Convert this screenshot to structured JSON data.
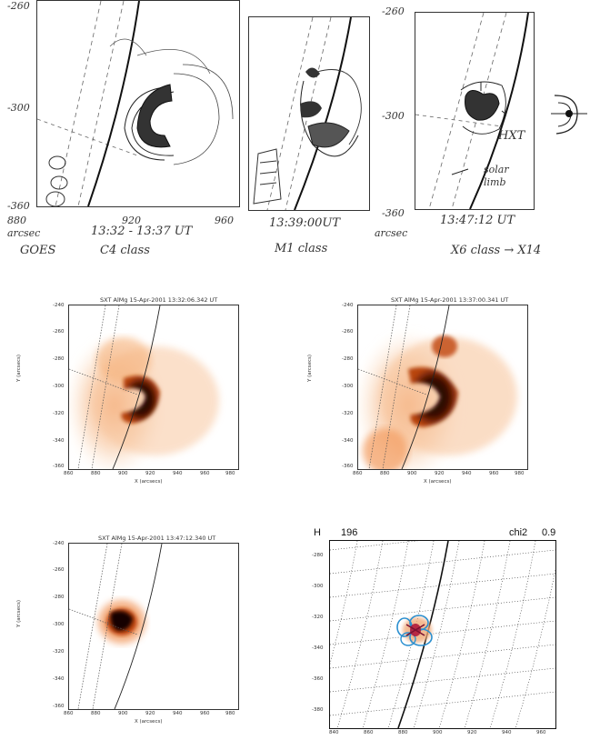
{
  "sketches": [
    {
      "ticks_y": [
        "-260",
        "-300",
        "-360"
      ],
      "ticks_x": [
        "880",
        "920",
        "960"
      ],
      "unit": "arcsec",
      "time": "13:32 - 13:37 UT",
      "goes_label": "GOES",
      "flare_class": "C4 class"
    },
    {
      "time": "13:39:00UT",
      "flare_class": "M1 class"
    },
    {
      "ticks_y": [
        "-260",
        "-300",
        "-360"
      ],
      "unit": "arcsec",
      "time": "13:47:12 UT",
      "flare_class": "X6 class → X14",
      "hxt_label": "HXT",
      "limb_label": "solar limb"
    }
  ],
  "sxt_panels": [
    {
      "title": "SXT AlMg 15-Apr-2001 13:32:06.342 UT",
      "ylabel": "Y (arcsecs)",
      "xlabel": "X (arcsecs)",
      "yticks": [
        "-240",
        "-260",
        "-280",
        "-300",
        "-320",
        "-340",
        "-360"
      ],
      "xticks": [
        "860",
        "880",
        "900",
        "920",
        "940",
        "960",
        "980"
      ]
    },
    {
      "title": "SXT AlMg 15-Apr-2001 13:37:00.341 UT",
      "ylabel": "Y (arcsecs)",
      "xlabel": "X (arcsecs)",
      "yticks": [
        "-240",
        "-260",
        "-280",
        "-300",
        "-320",
        "-340",
        "-360"
      ],
      "xticks": [
        "860",
        "880",
        "900",
        "920",
        "940",
        "960",
        "980"
      ]
    },
    {
      "title": "SXT AlMg 15-Apr-2001 13:47:12.340 UT",
      "ylabel": "Y (arcsecs)",
      "xlabel": "X (arcsecs)",
      "yticks": [
        "-240",
        "-260",
        "-280",
        "-300",
        "-320",
        "-340",
        "-360"
      ],
      "xticks": [
        "860",
        "880",
        "900",
        "920",
        "940",
        "960",
        "980"
      ]
    }
  ],
  "model_panel": {
    "label_left": "H",
    "label_num": "196",
    "label_chi": "chi2",
    "label_chi_val": "0.9",
    "yticks": [
      "-280",
      "-300",
      "-320",
      "-340",
      "-360",
      "-380"
    ],
    "xticks": [
      "840",
      "860",
      "880",
      "900",
      "920",
      "940",
      "960"
    ]
  },
  "colors": {
    "sxt_dark": "#1a0500",
    "sxt_mid": "#c0440f",
    "sxt_light": "#f6b27c",
    "model_contour": "#2a8fd0",
    "model_core": "#b0183a"
  }
}
